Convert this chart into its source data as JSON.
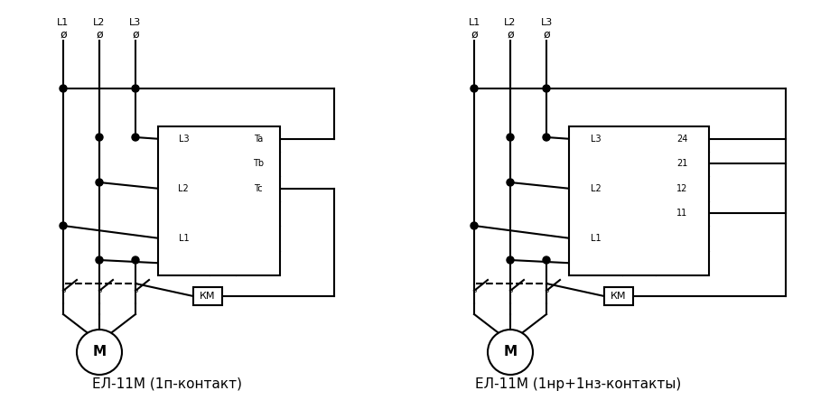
{
  "title_left": "ЕЛ-11М (1п-контакт)",
  "title_right": "ЕЛ-11М (1нр+1нз-контакты)",
  "bg_color": "#ffffff",
  "line_color": "#000000"
}
